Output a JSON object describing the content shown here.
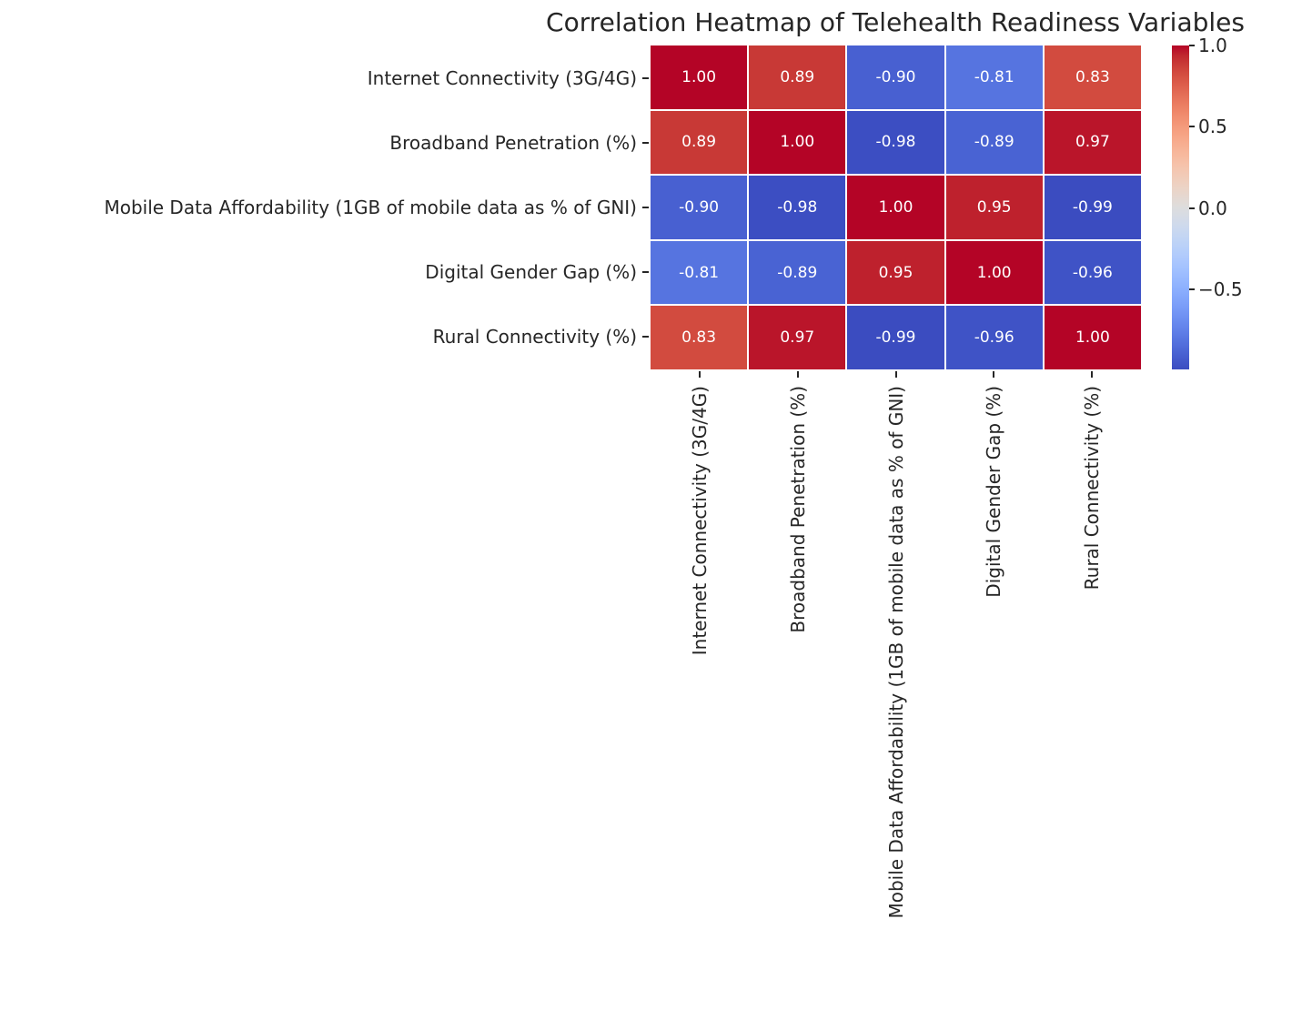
{
  "figure": {
    "background": "#ffffff",
    "text_color": "#262626"
  },
  "chart_data": {
    "type": "heatmap",
    "title": "Correlation Heatmap of Telehealth Readiness Variables",
    "variables": [
      "Internet Connectivity (3G/4G)",
      "Broadband Penetration (%)",
      "Mobile Data Affordability (1GB of mobile data as % of GNI)",
      "Digital Gender Gap (%)",
      "Rural Connectivity (%)"
    ],
    "matrix": [
      [
        1.0,
        0.89,
        -0.9,
        -0.81,
        0.83
      ],
      [
        0.89,
        1.0,
        -0.98,
        -0.89,
        0.97
      ],
      [
        -0.9,
        -0.98,
        1.0,
        0.95,
        -0.99
      ],
      [
        -0.81,
        -0.89,
        0.95,
        1.0,
        -0.96
      ],
      [
        0.83,
        0.97,
        -0.99,
        -0.96,
        1.0
      ]
    ],
    "annotation_format": "0.00",
    "annotation_color": "#ffffff",
    "cell_line_color": "#ffffff",
    "colormap": "coolwarm",
    "vmin": -0.99,
    "vmax": 1.0,
    "grid": false,
    "colorbar_position": "right",
    "colorbar_ticks": [
      {
        "value": 1.0,
        "label": "1.0"
      },
      {
        "value": 0.5,
        "label": "0.5"
      },
      {
        "value": 0.0,
        "label": "0.0"
      },
      {
        "value": -0.5,
        "label": "−0.5"
      }
    ]
  }
}
